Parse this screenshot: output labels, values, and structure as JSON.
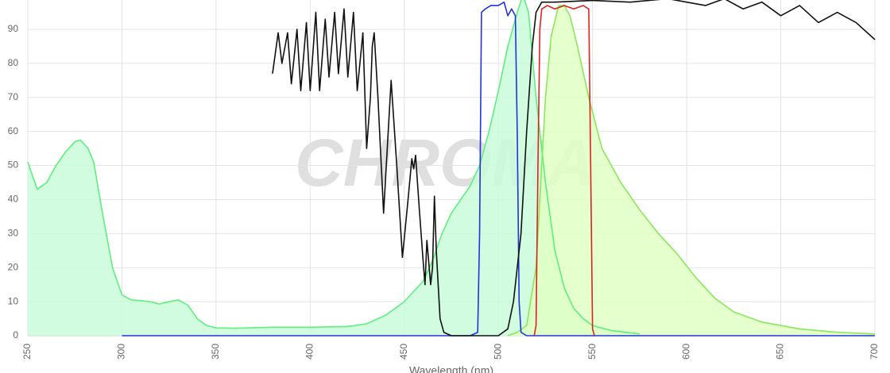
{
  "chart_data": {
    "type": "line",
    "x_label": "Wavelength (nm)",
    "watermark": "CHROMA",
    "xlim": [
      250,
      700
    ],
    "ylim": [
      0,
      100
    ],
    "xticks": [
      250,
      300,
      350,
      400,
      450,
      500,
      550,
      600,
      650,
      700
    ],
    "yticks": [
      0,
      10,
      20,
      30,
      40,
      50,
      60,
      70,
      80,
      90
    ],
    "grid": true,
    "series": [
      {
        "color": "#5ef07e",
        "fill": "#c9fbd9",
        "x": [
          250,
          255,
          260,
          265,
          270,
          275,
          278,
          282,
          285,
          290,
          295,
          300,
          305,
          310,
          315,
          320,
          325,
          330,
          335,
          340,
          345,
          350,
          360,
          380,
          400,
          420,
          430,
          440,
          450,
          460,
          465,
          470,
          475,
          480,
          485,
          490,
          495,
          500,
          505,
          510,
          513,
          516,
          520,
          525,
          530,
          535,
          540,
          545,
          550,
          560,
          575
        ],
        "values": [
          51,
          43,
          45,
          50,
          54,
          57,
          57.5,
          55,
          51,
          35,
          20,
          12,
          10.5,
          10.3,
          10,
          9.3,
          10,
          10.5,
          9,
          5,
          3,
          2.3,
          2.2,
          2.5,
          2.5,
          2.7,
          3.5,
          6,
          10,
          16,
          22,
          30,
          36,
          40,
          44,
          50,
          60,
          72,
          85,
          95,
          100,
          95,
          70,
          45,
          25,
          14,
          8,
          5,
          3,
          1.5,
          0.5
        ]
      },
      {
        "color": "#8ae85a",
        "fill": "#e0ffc4",
        "x": [
          505,
          510,
          515,
          520,
          522,
          525,
          528,
          532,
          535,
          538,
          542,
          548,
          555,
          565,
          575,
          585,
          595,
          605,
          615,
          625,
          640,
          660,
          680,
          700
        ],
        "values": [
          0,
          1,
          3,
          20,
          40,
          70,
          88,
          97,
          97,
          94,
          85,
          70,
          55,
          45,
          37,
          30,
          24,
          17,
          11,
          7,
          4,
          2,
          1,
          0.5
        ]
      },
      {
        "color": "#2233dd",
        "x": [
          300,
          485,
          489,
          490,
          491,
          493,
          496,
          500,
          503,
          505,
          507,
          509,
          510,
          511,
          512,
          515,
          700
        ],
        "values": [
          0,
          0,
          1,
          30,
          95,
          96,
          97,
          97,
          98,
          94,
          96,
          94,
          60,
          10,
          1,
          0,
          0
        ]
      },
      {
        "color": "#111111",
        "x": [
          380,
          383,
          385,
          388,
          390,
          393,
          395,
          398,
          400,
          403,
          405,
          408,
          410,
          413,
          415,
          418,
          420,
          423,
          425,
          428,
          430,
          432,
          433,
          434,
          436,
          439,
          443,
          446,
          449,
          452,
          454,
          455,
          456,
          458,
          460,
          461,
          462,
          464,
          465,
          466,
          467,
          469,
          471,
          475,
          500,
          505,
          508,
          512,
          515,
          518,
          520,
          523,
          530,
          550,
          570,
          590,
          600,
          610,
          620,
          630,
          640,
          650,
          660,
          670,
          680,
          690,
          700
        ],
        "values": [
          77,
          89,
          80,
          89,
          74,
          90,
          72,
          92,
          72,
          95,
          72,
          93,
          76,
          95,
          77,
          96,
          76,
          95,
          72,
          89,
          55,
          70,
          85,
          89,
          70,
          36,
          75,
          50,
          23,
          40,
          52,
          49,
          53,
          37,
          22,
          15,
          28,
          15,
          20,
          41,
          25,
          5,
          1,
          0,
          0,
          2,
          10,
          30,
          60,
          85,
          95,
          98,
          98,
          98.5,
          98,
          99,
          98,
          97,
          99,
          96,
          98,
          94,
          97,
          92,
          95,
          92,
          87
        ]
      },
      {
        "color": "#dd2222",
        "x": [
          519,
          520,
          521,
          522,
          523,
          526,
          530,
          535,
          540,
          545,
          548,
          549,
          550,
          551
        ],
        "values": [
          0,
          3,
          50,
          90,
          96,
          97,
          96,
          97,
          96,
          97,
          96,
          50,
          2,
          0
        ]
      }
    ]
  }
}
